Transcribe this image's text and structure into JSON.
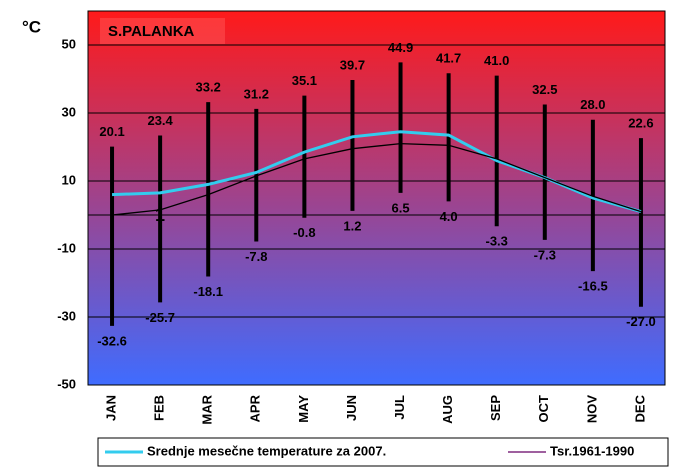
{
  "chart_data": {
    "type": "range",
    "title": "S.PALANKA",
    "ylabel": "°C",
    "annotation": "1",
    "categories": [
      "JAN",
      "FEB",
      "MAR",
      "APR",
      "MAY",
      "JUN",
      "JUL",
      "AUG",
      "SEP",
      "OCT",
      "NOV",
      "DEC"
    ],
    "extremes": {
      "color": "#000000",
      "max": [
        20.1,
        23.4,
        33.2,
        31.2,
        35.1,
        39.7,
        44.9,
        41.7,
        41.0,
        32.5,
        28.0,
        22.6
      ],
      "max_labels": [
        "20.1",
        "23.4",
        "33.2",
        "31.2",
        "35.1",
        "39.7",
        "44.9",
        "41.7",
        "41.0",
        "32.5",
        "28.0",
        "22.6"
      ],
      "min": [
        -32.6,
        -25.7,
        -18.1,
        -7.8,
        -0.8,
        1.2,
        6.5,
        4.0,
        -3.3,
        -7.3,
        -16.5,
        -27.0
      ],
      "min_labels": [
        "-32.6",
        "-25.7",
        "-18.1",
        "-7.8",
        "-0.8",
        "1.2",
        "6.5",
        "4.0",
        "-3.3",
        "-7.3",
        "-16.5",
        "-27.0"
      ]
    },
    "series": [
      {
        "name": "Srednje mesečne temperature za 2007.",
        "color": "#33ccee",
        "width": 3,
        "values": [
          6,
          6.5,
          9,
          12.5,
          18.5,
          23,
          24.5,
          23.5,
          16,
          11,
          5,
          1
        ]
      },
      {
        "name": "Tsr.1961-1990",
        "color": "#000000",
        "legend_color": "#660066",
        "width": 1.3,
        "values": [
          0,
          1.5,
          6,
          11.5,
          16.5,
          19.5,
          21,
          20.5,
          16.5,
          11,
          5.5,
          1
        ]
      }
    ],
    "ylim": [
      -50,
      60
    ],
    "yticks": [
      -50,
      -30,
      -10,
      10,
      30,
      50
    ],
    "grid": true,
    "gradient": [
      "#ff1a1a",
      "#3f6cff"
    ]
  }
}
